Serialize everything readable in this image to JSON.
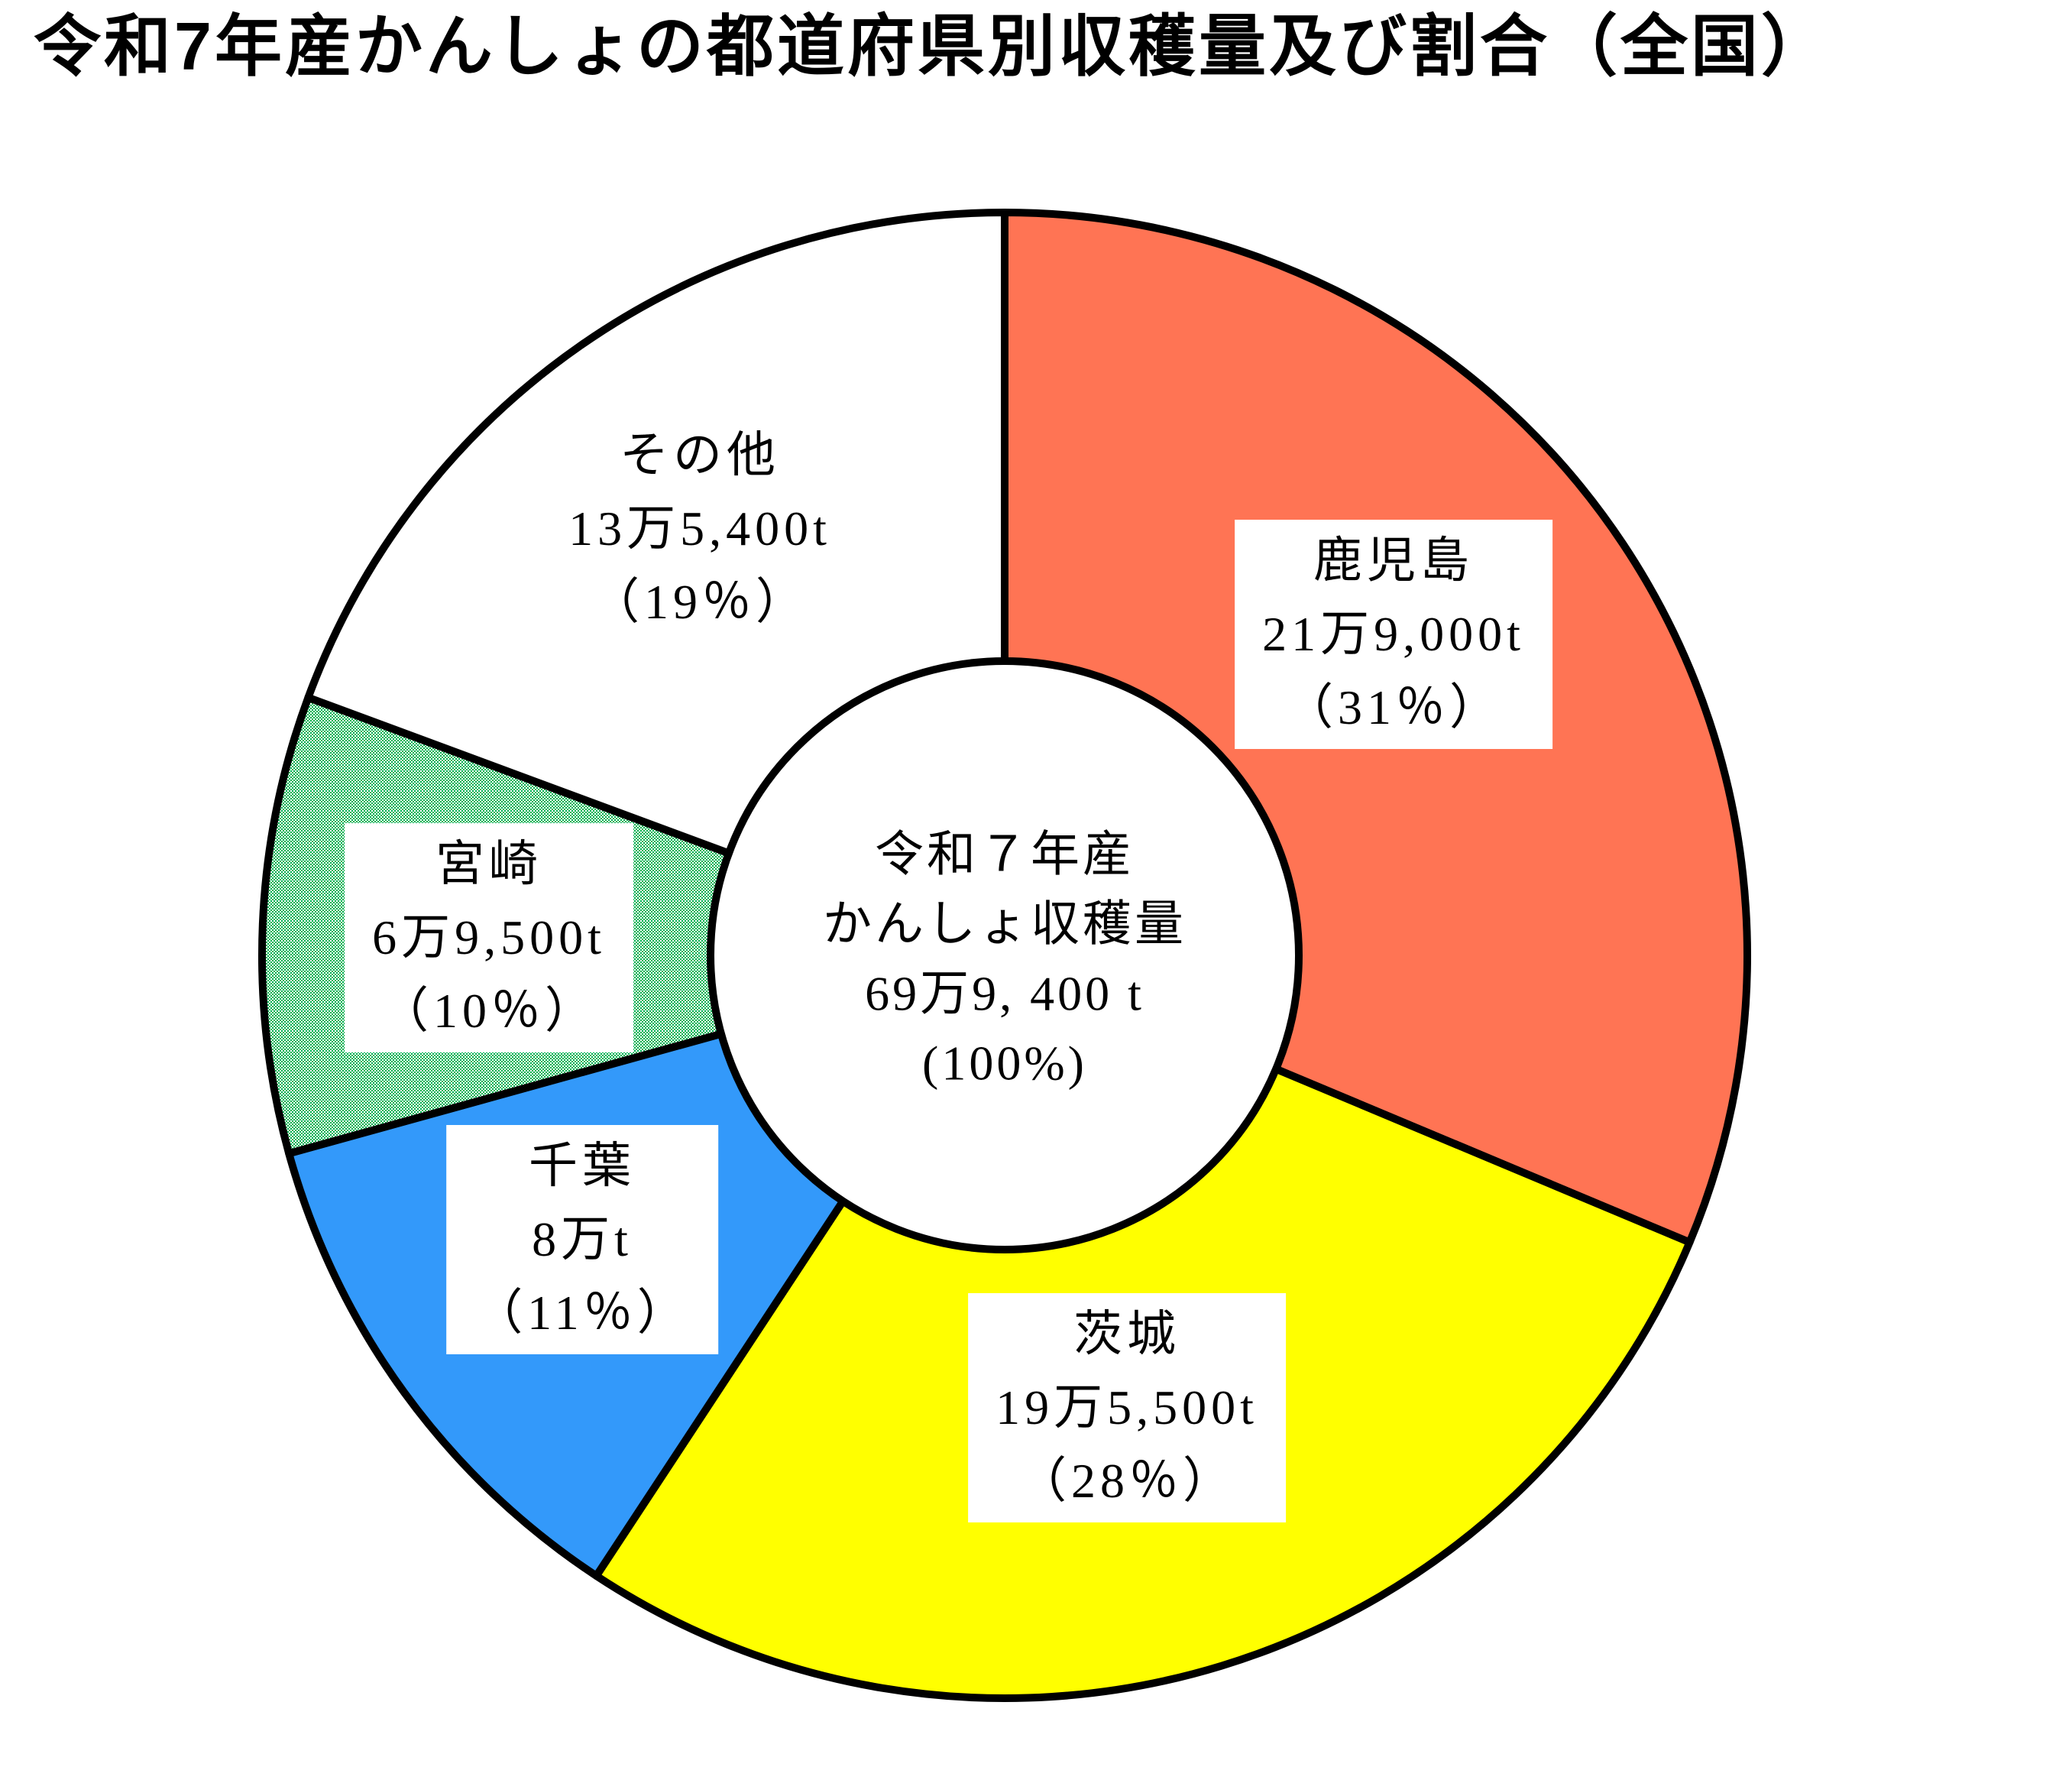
{
  "title": "令和7年産かんしょの都道府県別収穫量及び割合（全国）",
  "colors": {
    "outline": "#000000",
    "background": "#ffffff",
    "kagoshima": "#ff7454",
    "ibaraki": "#ffff00",
    "chiba": "#3399fa",
    "miyazaki": "#00b050",
    "sonota": "#ffffff"
  },
  "chart_data": {
    "type": "pie",
    "donut": true,
    "title": "令和7年産かんしょの都道府県別収穫量及び割合（全国）",
    "unit": "t",
    "start_angle_deg": 0,
    "direction": "clockwise",
    "total_value": 699400,
    "center_label": {
      "lines": [
        "令和７年産",
        "かんしょ収穫量",
        "69万9, 400 t",
        "(100%)"
      ]
    },
    "slices": [
      {
        "name": "鹿児島",
        "value": 219000,
        "value_label": "21万9,000t",
        "percent": 31,
        "percent_label": "（31％）",
        "color": "#ff7454"
      },
      {
        "name": "茨城",
        "value": 195500,
        "value_label": "19万5,500t",
        "percent": 28,
        "percent_label": "（28％）",
        "color": "#ffff00"
      },
      {
        "name": "千葉",
        "value": 80000,
        "value_label": "8万t",
        "percent": 11,
        "percent_label": "（11％）",
        "color": "#3399fa"
      },
      {
        "name": "宮崎",
        "value": 69500,
        "value_label": "6万9,500t",
        "percent": 10,
        "percent_label": "（10％）",
        "color": "#00b050",
        "pattern": "checker",
        "pattern_colors": [
          "#00b050",
          "#ffffff"
        ]
      },
      {
        "name": "その他",
        "value": 135400,
        "value_label": "13万5,400t",
        "percent": 19,
        "percent_label": "（19％）",
        "color": "#ffffff"
      }
    ]
  }
}
